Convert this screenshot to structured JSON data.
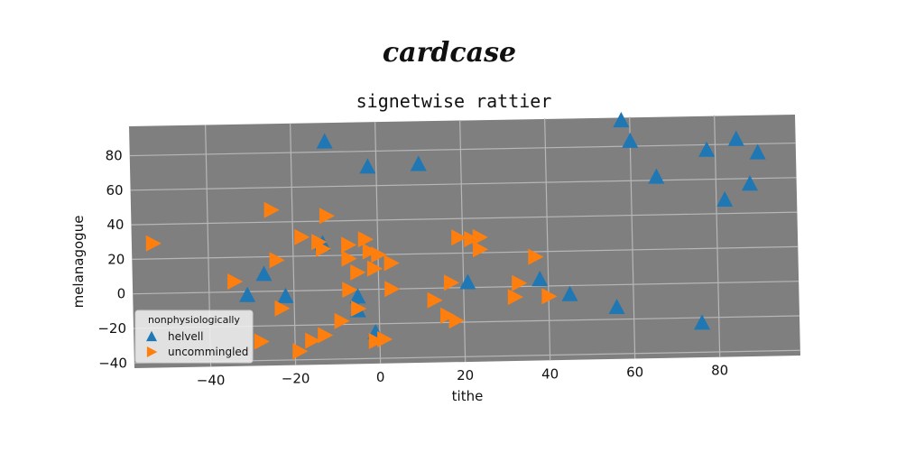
{
  "header": {
    "title": "cardcase"
  },
  "chart_data": {
    "type": "scatter",
    "title": "signetwise rattier",
    "xlabel": "tithe",
    "ylabel": "melanagogue",
    "xlim": [
      -58,
      99
    ],
    "ylim": [
      -43,
      97
    ],
    "xticks": [
      -40,
      -20,
      0,
      20,
      40,
      60,
      80
    ],
    "yticks": [
      -40,
      -20,
      0,
      20,
      40,
      60,
      80
    ],
    "grid": true,
    "legend": {
      "title": "nonphysiologically",
      "placement": "lower-left"
    },
    "colors": {
      "plot_bg": "#7f7f7f",
      "grid": "#b7b7b7"
    },
    "series": [
      {
        "name": "helvell",
        "marker": "triangle-up",
        "color": "#1f77b4",
        "points": [
          [
            -12,
            86
          ],
          [
            -2,
            71
          ],
          [
            10,
            72
          ],
          [
            58,
            95
          ],
          [
            60,
            83
          ],
          [
            66,
            62
          ],
          [
            78,
            77
          ],
          [
            85,
            83
          ],
          [
            90,
            75
          ],
          [
            88,
            57
          ],
          [
            82,
            48
          ],
          [
            -27,
            10
          ],
          [
            -31,
            -2
          ],
          [
            -22,
            -3
          ],
          [
            -5,
            -4
          ],
          [
            -5,
            -12
          ],
          [
            -13,
            27
          ],
          [
            -1,
            -25
          ],
          [
            21,
            3
          ],
          [
            38,
            4
          ],
          [
            45,
            -5
          ],
          [
            56,
            -13
          ],
          [
            76,
            -23
          ]
        ]
      },
      {
        "name": "uncommingled",
        "marker": "triangle-right",
        "color": "#ff7f0e",
        "points": [
          [
            -53,
            29
          ],
          [
            -34,
            6
          ],
          [
            -25,
            47
          ],
          [
            -24,
            18
          ],
          [
            -18,
            31
          ],
          [
            -12,
            43
          ],
          [
            -14,
            28
          ],
          [
            -13,
            24
          ],
          [
            -7,
            26
          ],
          [
            -7,
            18
          ],
          [
            -7,
            0
          ],
          [
            -5,
            10
          ],
          [
            -5,
            -11
          ],
          [
            -3,
            29
          ],
          [
            -2,
            22
          ],
          [
            -1,
            12
          ],
          [
            0,
            20
          ],
          [
            3,
            15
          ],
          [
            3,
            0
          ],
          [
            -9,
            -18
          ],
          [
            -13,
            -26
          ],
          [
            -16,
            -29
          ],
          [
            -19,
            -35
          ],
          [
            -28,
            -29
          ],
          [
            -23,
            -10
          ],
          [
            -1,
            -30
          ],
          [
            1,
            -29
          ],
          [
            13,
            -7
          ],
          [
            16,
            -16
          ],
          [
            18,
            -19
          ],
          [
            17,
            3
          ],
          [
            19,
            29
          ],
          [
            22,
            28
          ],
          [
            24,
            22
          ],
          [
            24,
            29
          ],
          [
            32,
            -6
          ],
          [
            33,
            2
          ],
          [
            37,
            17
          ],
          [
            40,
            -6
          ]
        ]
      }
    ]
  }
}
